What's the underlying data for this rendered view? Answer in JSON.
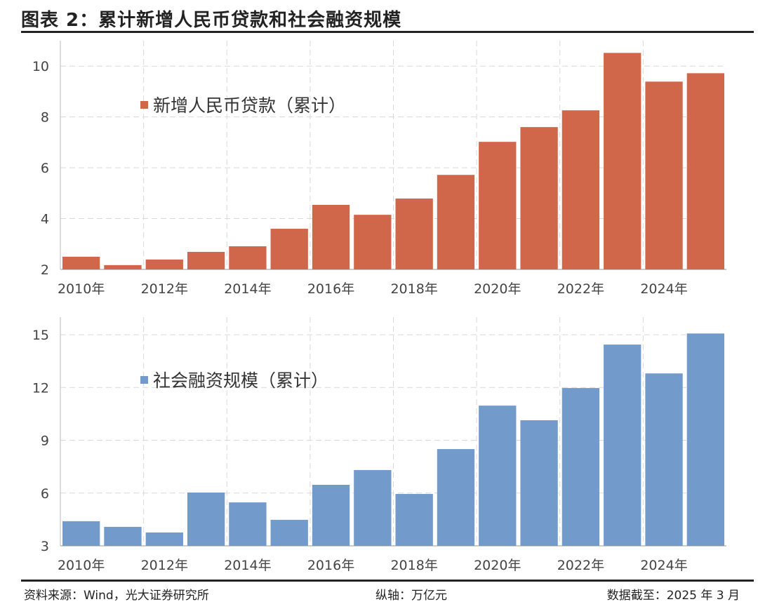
{
  "title": "图表 2：累计新增人民币贷款和社会融资规模",
  "footer": {
    "source": "资料来源：Wind，光大证券研究所",
    "axis_unit": "纵轴：万亿元",
    "date": "数据截至：2025 年 3 月"
  },
  "chart_data": [
    {
      "type": "bar",
      "legend": "新增人民币贷款（累计）",
      "legend_position": "top-left",
      "color": "#D0674A",
      "categories": [
        "2010",
        "2011",
        "2012",
        "2013",
        "2014",
        "2015",
        "2016",
        "2017",
        "2018",
        "2019",
        "2020",
        "2021",
        "2022",
        "2023",
        "2024",
        "2025"
      ],
      "x_tick_labels": [
        "2010年",
        "2012年",
        "2014年",
        "2016年",
        "2018年",
        "2020年",
        "2022年",
        "2024年"
      ],
      "values": [
        2.5,
        2.17,
        2.39,
        2.69,
        2.91,
        3.6,
        4.54,
        4.15,
        4.79,
        5.72,
        7.02,
        7.6,
        8.26,
        10.52,
        9.39,
        9.72
      ],
      "ylim": [
        2,
        11
      ],
      "y_ticks": [
        2,
        4,
        6,
        8,
        10
      ],
      "grid": true
    },
    {
      "type": "bar",
      "legend": "社会融资规模（累计）",
      "legend_position": "top-left",
      "color": "#729ACB",
      "categories": [
        "2010",
        "2011",
        "2012",
        "2013",
        "2014",
        "2015",
        "2016",
        "2017",
        "2018",
        "2019",
        "2020",
        "2021",
        "2022",
        "2023",
        "2024",
        "2025"
      ],
      "x_tick_labels": [
        "2010年",
        "2012年",
        "2014年",
        "2016年",
        "2018年",
        "2020年",
        "2022年",
        "2024年"
      ],
      "values": [
        4.4,
        4.08,
        3.76,
        6.03,
        5.47,
        4.48,
        6.47,
        7.31,
        5.95,
        8.5,
        10.97,
        10.14,
        11.97,
        14.44,
        12.8,
        15.07
      ],
      "ylim": [
        3,
        16
      ],
      "y_ticks": [
        3,
        6,
        9,
        12,
        15
      ],
      "grid": true
    }
  ]
}
